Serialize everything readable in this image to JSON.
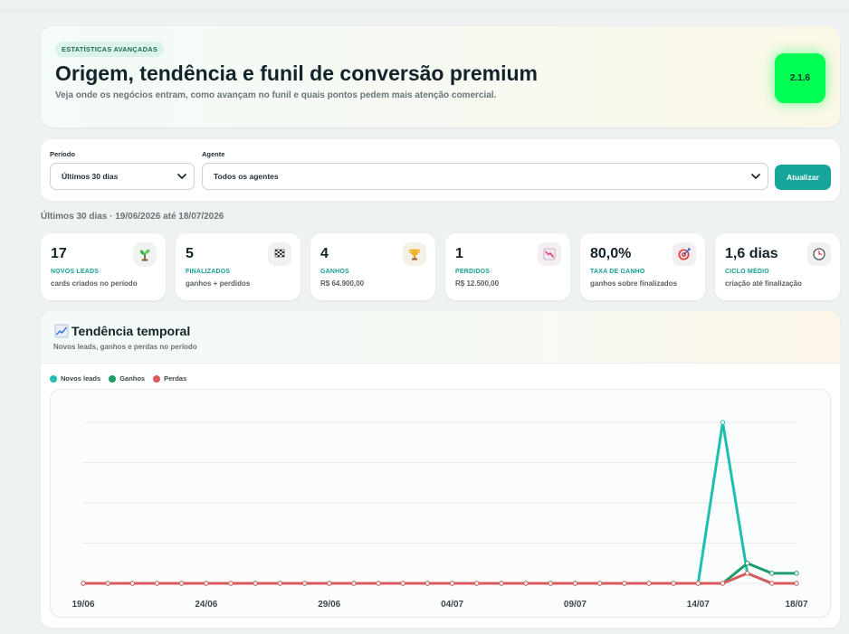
{
  "hero": {
    "badge": "ESTATÍSTICAS AVANÇADAS",
    "title": "Origem, tendência e funil de conversão premium",
    "subtitle": "Veja onde os negócios entram, como avançam no funil e quais pontos pedem mais atenção comercial.",
    "version": "2.1.6"
  },
  "filters": {
    "period_label": "Período",
    "period_value": "Últimos 30 dias",
    "agent_label": "Agente",
    "agent_value": "Todos os agentes",
    "update_button": "Atualizar"
  },
  "range_label": "Últimos 30 dias · 19/06/2026 até 18/07/2026",
  "cards": [
    {
      "value": "17",
      "title": "NOVOS LEADS",
      "sub": "cards criados no período",
      "icon": "seedling-icon"
    },
    {
      "value": "5",
      "title": "FINALIZADOS",
      "sub": "ganhos + perdidos",
      "icon": "checkered-flag-icon"
    },
    {
      "value": "4",
      "title": "GANHOS",
      "sub": "R$ 64.900,00",
      "icon": "trophy-icon"
    },
    {
      "value": "1",
      "title": "PERDIDOS",
      "sub": "R$ 12.500,00",
      "icon": "chart-down-icon"
    },
    {
      "value": "80,0%",
      "title": "TAXA DE GANHO",
      "sub": "ganhos sobre finalizados",
      "icon": "target-icon"
    },
    {
      "value": "1,6 dias",
      "title": "CICLO MÉDIO",
      "sub": "criação até finalização",
      "icon": "clock-icon"
    }
  ],
  "trend": {
    "title": "Tendência temporal",
    "subtitle": "Novos leads, ganhos e perdas no período",
    "icon": "chart-up-icon"
  },
  "chart_data": {
    "type": "line",
    "x": [
      "19/06",
      "20/06",
      "21/06",
      "22/06",
      "23/06",
      "24/06",
      "25/06",
      "26/06",
      "27/06",
      "28/06",
      "29/06",
      "30/06",
      "01/07",
      "02/07",
      "03/07",
      "04/07",
      "05/07",
      "06/07",
      "07/07",
      "08/07",
      "09/07",
      "10/07",
      "11/07",
      "12/07",
      "13/07",
      "14/07",
      "15/07",
      "16/07",
      "17/07",
      "18/07"
    ],
    "xticks": [
      "19/06",
      "24/06",
      "29/06",
      "04/07",
      "09/07",
      "14/07",
      "18/07"
    ],
    "ylim": [
      0,
      16
    ],
    "grid": true,
    "legend": "top-left",
    "series": [
      {
        "name": "Novos leads",
        "color": "#1fbfb0",
        "values": [
          0,
          0,
          0,
          0,
          0,
          0,
          0,
          0,
          0,
          0,
          0,
          0,
          0,
          0,
          0,
          0,
          0,
          0,
          0,
          0,
          0,
          0,
          0,
          0,
          0,
          0,
          16,
          1,
          0,
          0
        ]
      },
      {
        "name": "Ganhos",
        "color": "#1c9d6a",
        "values": [
          0,
          0,
          0,
          0,
          0,
          0,
          0,
          0,
          0,
          0,
          0,
          0,
          0,
          0,
          0,
          0,
          0,
          0,
          0,
          0,
          0,
          0,
          0,
          0,
          0,
          0,
          0,
          2,
          1,
          1
        ]
      },
      {
        "name": "Perdas",
        "color": "#d9595c",
        "values": [
          0,
          0,
          0,
          0,
          0,
          0,
          0,
          0,
          0,
          0,
          0,
          0,
          0,
          0,
          0,
          0,
          0,
          0,
          0,
          0,
          0,
          0,
          0,
          0,
          0,
          0,
          0,
          1,
          0,
          0
        ]
      }
    ]
  }
}
